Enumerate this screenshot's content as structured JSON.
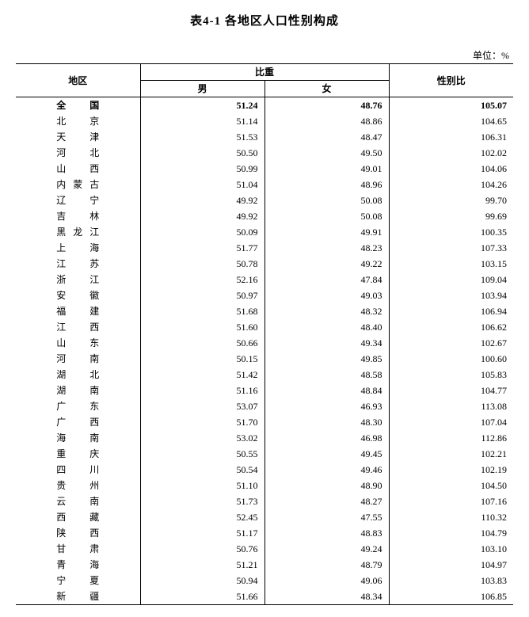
{
  "title": "表4-1 各地区人口性别构成",
  "unit_label": "单位：%",
  "headers": {
    "region": "地区",
    "proportion": "比重",
    "male": "男",
    "female": "女",
    "ratio": "性别比"
  },
  "total_row": {
    "region": "全　国",
    "male": "51.24",
    "female": "48.76",
    "ratio": "105.07"
  },
  "rows": [
    {
      "region": "北　京",
      "male": "51.14",
      "female": "48.86",
      "ratio": "104.65"
    },
    {
      "region": "天　津",
      "male": "51.53",
      "female": "48.47",
      "ratio": "106.31"
    },
    {
      "region": "河　北",
      "male": "50.50",
      "female": "49.50",
      "ratio": "102.02"
    },
    {
      "region": "山　西",
      "male": "50.99",
      "female": "49.01",
      "ratio": "104.06"
    },
    {
      "region": "内蒙古",
      "male": "51.04",
      "female": "48.96",
      "ratio": "104.26"
    },
    {
      "region": "辽　宁",
      "male": "49.92",
      "female": "50.08",
      "ratio": "99.70"
    },
    {
      "region": "吉　林",
      "male": "49.92",
      "female": "50.08",
      "ratio": "99.69"
    },
    {
      "region": "黑龙江",
      "male": "50.09",
      "female": "49.91",
      "ratio": "100.35"
    },
    {
      "region": "上　海",
      "male": "51.77",
      "female": "48.23",
      "ratio": "107.33"
    },
    {
      "region": "江　苏",
      "male": "50.78",
      "female": "49.22",
      "ratio": "103.15"
    },
    {
      "region": "浙　江",
      "male": "52.16",
      "female": "47.84",
      "ratio": "109.04"
    },
    {
      "region": "安　徽",
      "male": "50.97",
      "female": "49.03",
      "ratio": "103.94"
    },
    {
      "region": "福　建",
      "male": "51.68",
      "female": "48.32",
      "ratio": "106.94"
    },
    {
      "region": "江　西",
      "male": "51.60",
      "female": "48.40",
      "ratio": "106.62"
    },
    {
      "region": "山　东",
      "male": "50.66",
      "female": "49.34",
      "ratio": "102.67"
    },
    {
      "region": "河　南",
      "male": "50.15",
      "female": "49.85",
      "ratio": "100.60"
    },
    {
      "region": "湖　北",
      "male": "51.42",
      "female": "48.58",
      "ratio": "105.83"
    },
    {
      "region": "湖　南",
      "male": "51.16",
      "female": "48.84",
      "ratio": "104.77"
    },
    {
      "region": "广　东",
      "male": "53.07",
      "female": "46.93",
      "ratio": "113.08"
    },
    {
      "region": "广　西",
      "male": "51.70",
      "female": "48.30",
      "ratio": "107.04"
    },
    {
      "region": "海　南",
      "male": "53.02",
      "female": "46.98",
      "ratio": "112.86"
    },
    {
      "region": "重　庆",
      "male": "50.55",
      "female": "49.45",
      "ratio": "102.21"
    },
    {
      "region": "四　川",
      "male": "50.54",
      "female": "49.46",
      "ratio": "102.19"
    },
    {
      "region": "贵　州",
      "male": "51.10",
      "female": "48.90",
      "ratio": "104.50"
    },
    {
      "region": "云　南",
      "male": "51.73",
      "female": "48.27",
      "ratio": "107.16"
    },
    {
      "region": "西　藏",
      "male": "52.45",
      "female": "47.55",
      "ratio": "110.32"
    },
    {
      "region": "陕　西",
      "male": "51.17",
      "female": "48.83",
      "ratio": "104.79"
    },
    {
      "region": "甘　肃",
      "male": "50.76",
      "female": "49.24",
      "ratio": "103.10"
    },
    {
      "region": "青　海",
      "male": "51.21",
      "female": "48.79",
      "ratio": "104.97"
    },
    {
      "region": "宁　夏",
      "male": "50.94",
      "female": "49.06",
      "ratio": "103.83"
    },
    {
      "region": "新　疆",
      "male": "51.66",
      "female": "48.34",
      "ratio": "106.85"
    }
  ]
}
